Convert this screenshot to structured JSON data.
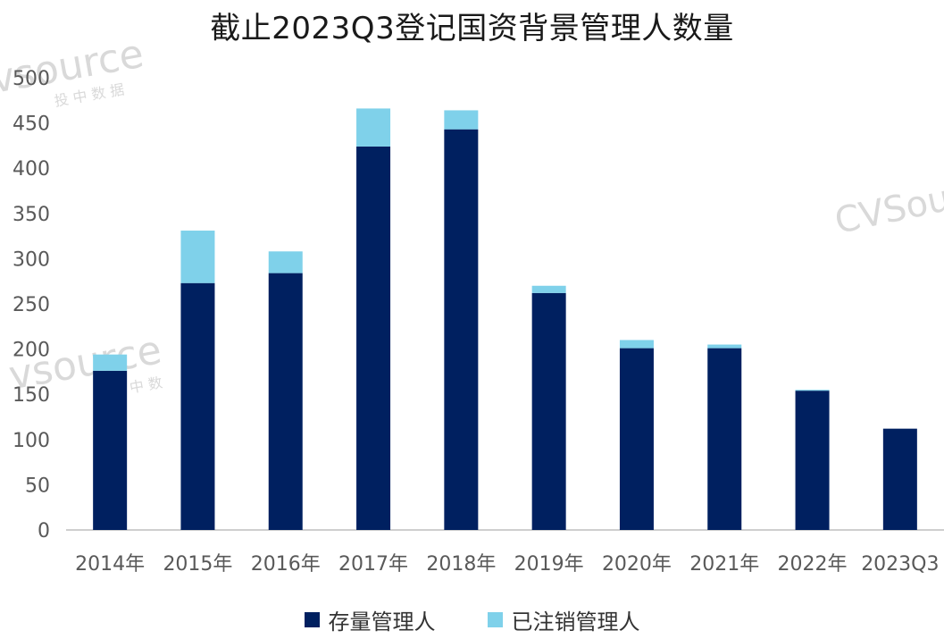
{
  "chart_data": {
    "type": "bar",
    "stacked": true,
    "title": "截止2023Q3登记国资背景管理人数量",
    "categories": [
      "2014年",
      "2015年",
      "2016年",
      "2017年",
      "2018年",
      "2019年",
      "2020年",
      "2021年",
      "2022年",
      "2023Q3"
    ],
    "series": [
      {
        "name": "存量管理人",
        "color": "#002060",
        "values": [
          176,
          273,
          284,
          424,
          443,
          262,
          201,
          201,
          154,
          112
        ]
      },
      {
        "name": "已注销管理人",
        "color": "#7FD1EA",
        "values": [
          18,
          58,
          24,
          42,
          21,
          8,
          9,
          4,
          1,
          0
        ]
      }
    ],
    "ylim": [
      0,
      500
    ],
    "yticks": [
      0,
      50,
      100,
      150,
      200,
      250,
      300,
      350,
      400,
      450,
      500
    ],
    "xlabel": "",
    "ylabel": "",
    "grid": false,
    "legend_position": "bottom"
  },
  "watermark": {
    "brand": "CVSource",
    "brand_lower": "vsource",
    "cn": "投 中 数 据",
    "cn_short": "中 数"
  }
}
